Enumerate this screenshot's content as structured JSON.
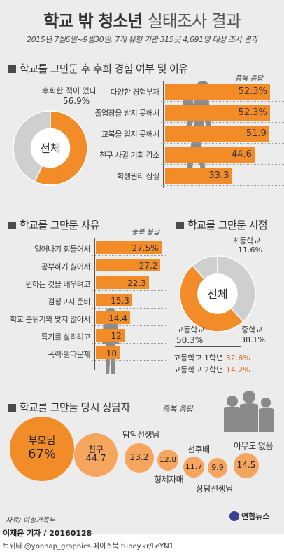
{
  "header": {
    "title_bold": "학교 밖 청소년",
    "title_thin": "실태조사 결과",
    "subtitle": "2015년 7월6일~9월30일, 7개 유형 기관 315곳 4,691명 대상 조사 결과"
  },
  "colors": {
    "accent": "#f28c28",
    "light_accent": "#f5a55d",
    "gray": "#cfcfcf",
    "background": "#ececec",
    "highlight_text": "#e0641c"
  },
  "chart_data": [
    {
      "type": "pie",
      "title": "학교를 그만둔 후 후회 경험 여부 및 이유",
      "center_label": "전체",
      "slices": [
        {
          "label": "후회한 적이 있다",
          "value": 56.9,
          "value_text": "56.9%"
        },
        {
          "label": "",
          "value": 43.1
        }
      ]
    },
    {
      "type": "bar",
      "title": "학교를 그만둔 후 후회 경험 여부 및 이유",
      "note": "중복 응답",
      "categories": [
        "다양한 경험부재",
        "졸업장을 받지 못해서",
        "교복을 입지 못해서",
        "친구 사귈 기회 감소",
        "학생권리 상실"
      ],
      "values": [
        52.3,
        52.3,
        51.9,
        44.6,
        33.3
      ],
      "value_labels": [
        "52.3%",
        "52.3%",
        "51.9",
        "44.6",
        "33.3"
      ],
      "xlim": [
        0,
        60
      ]
    },
    {
      "type": "bar",
      "title": "학교를 그만둔 사유",
      "note": "중복 응답",
      "categories": [
        "일어나기 힘들어서",
        "공부하기 싫어서",
        "원하는 것을 배우려고",
        "검정고시 준비",
        "학교 분위기와 맞지 않아서",
        "특기를 살리려고",
        "폭력·왕따문제"
      ],
      "values": [
        27.5,
        27.2,
        22.3,
        15.3,
        14.4,
        12,
        10
      ],
      "value_labels": [
        "27.5%",
        "27.2",
        "22.3",
        "15.3",
        "14.4",
        "12",
        "10"
      ],
      "xlim": [
        0,
        30
      ]
    },
    {
      "type": "pie",
      "title": "학교를 그만둔 시점",
      "center_label": "전체",
      "slices": [
        {
          "label": "초등학교",
          "value": 11.6,
          "value_text": "11.6%"
        },
        {
          "label": "중학교",
          "value": 38.1,
          "value_text": "38.1%"
        },
        {
          "label": "고등학교",
          "value": 50.3,
          "value_text": "50.3%"
        }
      ],
      "sub_breakdown": [
        {
          "label": "고등학교 1학년",
          "value_text": "32.6%"
        },
        {
          "label": "고등학교 2학년",
          "value_text": "14.2%"
        }
      ]
    },
    {
      "type": "bubble",
      "title": "학교를 그만둘 당시 상담자",
      "note": "중복 응답",
      "items": [
        {
          "label": "부모님",
          "value": 67,
          "value_text": "67%"
        },
        {
          "label": "친구",
          "value": 44.7,
          "value_text": "44.7"
        },
        {
          "label": "담임선생님",
          "value": 23.2,
          "value_text": "23.2"
        },
        {
          "label": "형제자매",
          "value": 12.8,
          "value_text": "12.8"
        },
        {
          "label": "선후배",
          "value": 11.7,
          "value_text": "11.7"
        },
        {
          "label": "상담선생님",
          "value": 9.9,
          "value_text": "9.9"
        },
        {
          "label": "아무도 없음",
          "value": 14.5,
          "value_text": "14.5"
        }
      ]
    }
  ],
  "footer": {
    "source": "자료/ 여성가족부",
    "logo": "연합뉴스",
    "byline": "이재윤 기자 / 20160128",
    "social": "트위터 @yonhap_graphics  페이스북 tuney.kr/LeYN1"
  }
}
